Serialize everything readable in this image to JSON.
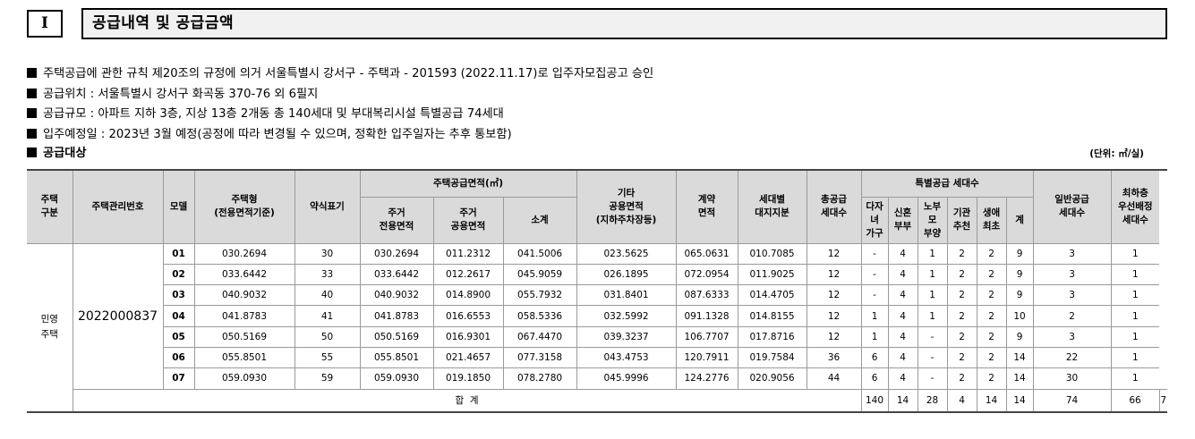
{
  "section": {
    "number": "I",
    "title": "공급내역 및 공급금액"
  },
  "bullets": [
    "주택공급에 관한 규칙 제20조의 규정에 의거 서울특별시 강서구 - 주택과 - 201593 (2022.11.17)로 입주자모집공고 승인",
    "공급위치 : 서울특별시 강서구 화곡동 370-76 외 6필지",
    "공급규모 : 아파트 지하 3층, 지상 13층 2개동 총 140세대 및 부대복리시설 특별공급 74세대",
    "입주예정일 : 2023년 3월 예정(공정에 따라 변경될 수 있으며, 정확한 입주일자는 추후 통보함)"
  ],
  "target_label": "공급대상",
  "unit": "(단위: ㎡/실)",
  "table": {
    "headers": {
      "kind": "주택\n구분",
      "mgmt_no": "주택관리번호",
      "model": "모델",
      "housing_type": "주택형\n(전용면적기준)",
      "display": "약식표기",
      "supply_area": "주택공급면적(㎡)",
      "exclusive": "주거\n전용면적",
      "common": "주거\n공용면적",
      "subtotal": "소계",
      "other_common": "기타\n공용면적\n(지하주차장등)",
      "contract": "계약\n면적",
      "land_share": "세대별\n대지지분",
      "total_supply": "총공급\n세대수",
      "special": "특별공급 세대수",
      "multi_child": "다자\n녀\n가구",
      "newlywed": "신혼\n부부",
      "elderly_parent": "노부\n모\n부양",
      "institution": "기관\n추천",
      "first_life": "생애\n최초",
      "special_sum": "계",
      "general": "일반공급\n세대수",
      "priority": "최하층\n우선배정\n세대수"
    },
    "kind_value": "민영\n주택",
    "mgmt_value": "2022000837",
    "rows": [
      {
        "model": "01",
        "type": "030.2694",
        "display": "30",
        "exclusive": "030.2694",
        "common": "011.2312",
        "subtotal": "041.5006",
        "other": "023.5625",
        "contract": "065.0631",
        "land": "010.7085",
        "total": "12",
        "multi_child": "-",
        "newlywed": "4",
        "elderly": "1",
        "institution": "2",
        "first_life": "2",
        "special_sum": "9",
        "general": "3",
        "priority": "1"
      },
      {
        "model": "02",
        "type": "033.6442",
        "display": "33",
        "exclusive": "033.6442",
        "common": "012.2617",
        "subtotal": "045.9059",
        "other": "026.1895",
        "contract": "072.0954",
        "land": "011.9025",
        "total": "12",
        "multi_child": "-",
        "newlywed": "4",
        "elderly": "1",
        "institution": "2",
        "first_life": "2",
        "special_sum": "9",
        "general": "3",
        "priority": "1"
      },
      {
        "model": "03",
        "type": "040.9032",
        "display": "40",
        "exclusive": "040.9032",
        "common": "014.8900",
        "subtotal": "055.7932",
        "other": "031.8401",
        "contract": "087.6333",
        "land": "014.4705",
        "total": "12",
        "multi_child": "-",
        "newlywed": "4",
        "elderly": "1",
        "institution": "2",
        "first_life": "2",
        "special_sum": "9",
        "general": "3",
        "priority": "1"
      },
      {
        "model": "04",
        "type": "041.8783",
        "display": "41",
        "exclusive": "041.8783",
        "common": "016.6553",
        "subtotal": "058.5336",
        "other": "032.5992",
        "contract": "091.1328",
        "land": "014.8155",
        "total": "12",
        "multi_child": "1",
        "newlywed": "4",
        "elderly": "1",
        "institution": "2",
        "first_life": "2",
        "special_sum": "10",
        "general": "2",
        "priority": "1"
      },
      {
        "model": "05",
        "type": "050.5169",
        "display": "50",
        "exclusive": "050.5169",
        "common": "016.9301",
        "subtotal": "067.4470",
        "other": "039.3237",
        "contract": "106.7707",
        "land": "017.8716",
        "total": "12",
        "multi_child": "1",
        "newlywed": "4",
        "elderly": "-",
        "institution": "2",
        "first_life": "2",
        "special_sum": "9",
        "general": "3",
        "priority": "1"
      },
      {
        "model": "06",
        "type": "055.8501",
        "display": "55",
        "exclusive": "055.8501",
        "common": "021.4657",
        "subtotal": "077.3158",
        "other": "043.4753",
        "contract": "120.7911",
        "land": "019.7584",
        "total": "36",
        "multi_child": "6",
        "newlywed": "4",
        "elderly": "-",
        "institution": "2",
        "first_life": "2",
        "special_sum": "14",
        "general": "22",
        "priority": "1"
      },
      {
        "model": "07",
        "type": "059.0930",
        "display": "59",
        "exclusive": "059.0930",
        "common": "019.1850",
        "subtotal": "078.2780",
        "other": "045.9996",
        "contract": "124.2776",
        "land": "020.9056",
        "total": "44",
        "multi_child": "6",
        "newlywed": "4",
        "elderly": "-",
        "institution": "2",
        "first_life": "2",
        "special_sum": "14",
        "general": "30",
        "priority": "1"
      }
    ],
    "total_row": {
      "label": "합  계",
      "total": "140",
      "multi_child": "14",
      "newlywed": "28",
      "elderly": "4",
      "institution": "14",
      "first_life": "14",
      "special_sum": "74",
      "general": "66",
      "priority": "7"
    }
  }
}
